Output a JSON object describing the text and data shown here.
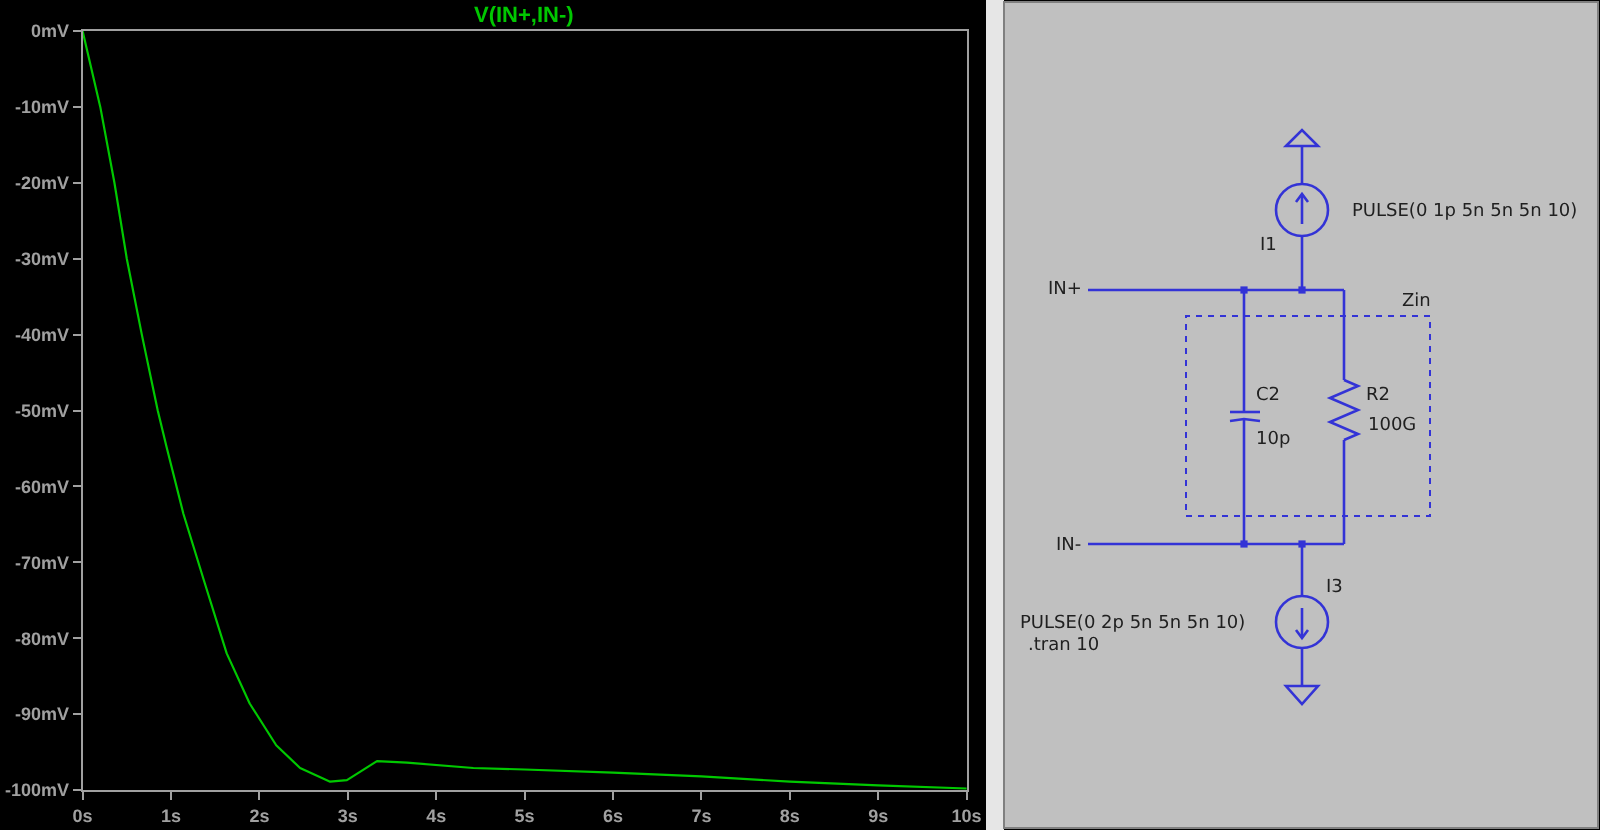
{
  "chart_data": [
    {
      "type": "line",
      "x": [
        0,
        0.2,
        0.36,
        0.5,
        0.67,
        0.85,
        0.95,
        1.14,
        1.37,
        1.63,
        1.89,
        2.19,
        2.46,
        2.8,
        2.99,
        3.33,
        3.67,
        4.42,
        5.0,
        6.0,
        7.0,
        8.0,
        9.0,
        10.0
      ],
      "series": [
        {
          "name": "V(IN+,IN-)",
          "color": "#00c800",
          "values": [
            0,
            -10,
            -20,
            -30,
            -40,
            -50,
            -54.8,
            -63.6,
            -72.3,
            -82.0,
            -88.6,
            -94.1,
            -97.1,
            -98.9,
            -98.7,
            -96.2,
            -96.4,
            -97.1,
            -97.3,
            -97.7,
            -98.2,
            -98.9,
            -99.4,
            -99.8
          ]
        }
      ],
      "xlim": [
        0,
        10
      ],
      "xticks": [
        {
          "value": 0,
          "label": "0s"
        },
        {
          "value": 1,
          "label": "1s"
        },
        {
          "value": 2,
          "label": "2s"
        },
        {
          "value": 3,
          "label": "3s"
        },
        {
          "value": 4,
          "label": "4s"
        },
        {
          "value": 5,
          "label": "5s"
        },
        {
          "value": 6,
          "label": "6s"
        },
        {
          "value": 7,
          "label": "7s"
        },
        {
          "value": 8,
          "label": "8s"
        },
        {
          "value": 9,
          "label": "9s"
        },
        {
          "value": 10,
          "label": "10s"
        }
      ],
      "ylim": [
        -100,
        0
      ],
      "yticks": [
        {
          "value": 0,
          "label": "0mV"
        },
        {
          "value": -10,
          "label": "-10mV"
        },
        {
          "value": -20,
          "label": "-20mV"
        },
        {
          "value": -30,
          "label": "-30mV"
        },
        {
          "value": -40,
          "label": "-40mV"
        },
        {
          "value": -50,
          "label": "-50mV"
        },
        {
          "value": -60,
          "label": "-60mV"
        },
        {
          "value": -70,
          "label": "-70mV"
        },
        {
          "value": -80,
          "label": "-80mV"
        },
        {
          "value": -90,
          "label": "-90mV"
        },
        {
          "value": -100,
          "label": "-100mV"
        }
      ],
      "legend": "top"
    },
    {
      "type": "other",
      "annotations": [
        "PULSE(0 1p 5n 5n 5n 10)",
        "I1",
        "IN+",
        "Zin",
        "C2",
        "R2",
        "100G",
        "10p",
        "IN-",
        "I3",
        "PULSE(0 2p 5n 5n 5n 10)",
        ".tran 10"
      ]
    }
  ]
}
